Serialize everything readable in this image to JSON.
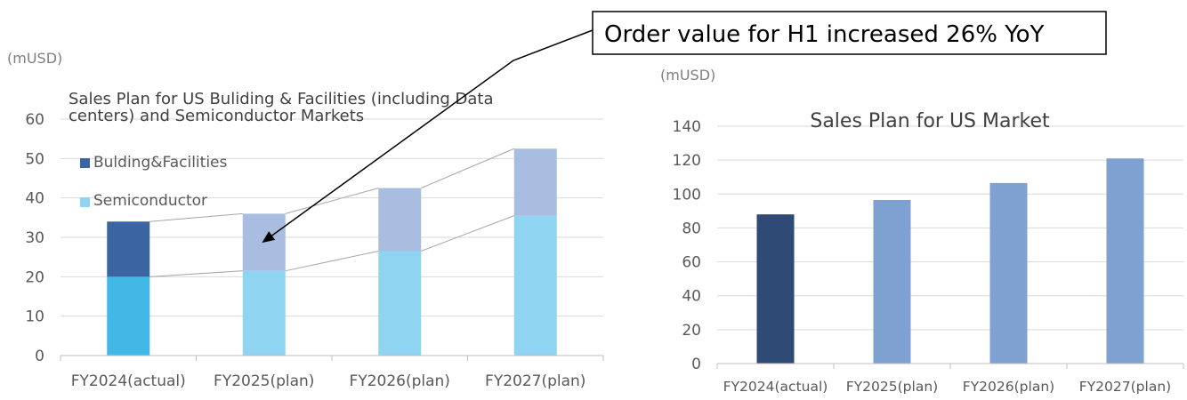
{
  "chart_data": [
    {
      "type": "bar",
      "stacked": true,
      "title": "Sales Plan for US  Buliding & Facilities (including Data centers) and Semiconductor  Markets",
      "title_lines": [
        "Sales Plan for US  Buliding & Facilities (including Data",
        "centers) and Semiconductor  Markets"
      ],
      "unit_label": "(mUSD)",
      "categories": [
        "FY2024(actual)",
        "FY2025(plan)",
        "FY2026(plan)",
        "FY2027(plan)"
      ],
      "series": [
        {
          "name": "Semiconductor",
          "values": [
            20,
            21.5,
            26.5,
            35.5
          ],
          "colors": [
            "#41b8e6",
            "#8fd5f2",
            "#8fd5f2",
            "#8fd5f2"
          ]
        },
        {
          "name": "Bulding&Facilities",
          "values": [
            14,
            14.5,
            16,
            17
          ],
          "colors": [
            "#3a65a1",
            "#a8bde0",
            "#a8bde0",
            "#a8bde0"
          ]
        }
      ],
      "legend": [
        {
          "name": "Bulding&Facilities",
          "color": "#3a65a1"
        },
        {
          "name": "Semiconductor",
          "color": "#8fd5f2"
        }
      ],
      "ylim": [
        0,
        60
      ],
      "yticks": [
        0,
        10,
        20,
        30,
        40,
        50,
        60
      ],
      "grid": true,
      "legend_position": "top-left"
    },
    {
      "type": "bar",
      "title": "Sales Plan for US Market",
      "unit_label": "(mUSD)",
      "categories": [
        "FY2024(actual)",
        "FY2025(plan)",
        "FY2026(plan)",
        "FY2027(plan)"
      ],
      "values": [
        88,
        96.5,
        106.5,
        121
      ],
      "colors": [
        "#2e4a75",
        "#7ea1d2",
        "#7ea1d2",
        "#7ea1d2"
      ],
      "ylim": [
        0,
        140
      ],
      "yticks": [
        0,
        20,
        40,
        60,
        80,
        100,
        120,
        140
      ],
      "grid": true
    }
  ],
  "annotation": {
    "text": "Order value for H1 increased 26% YoY"
  }
}
